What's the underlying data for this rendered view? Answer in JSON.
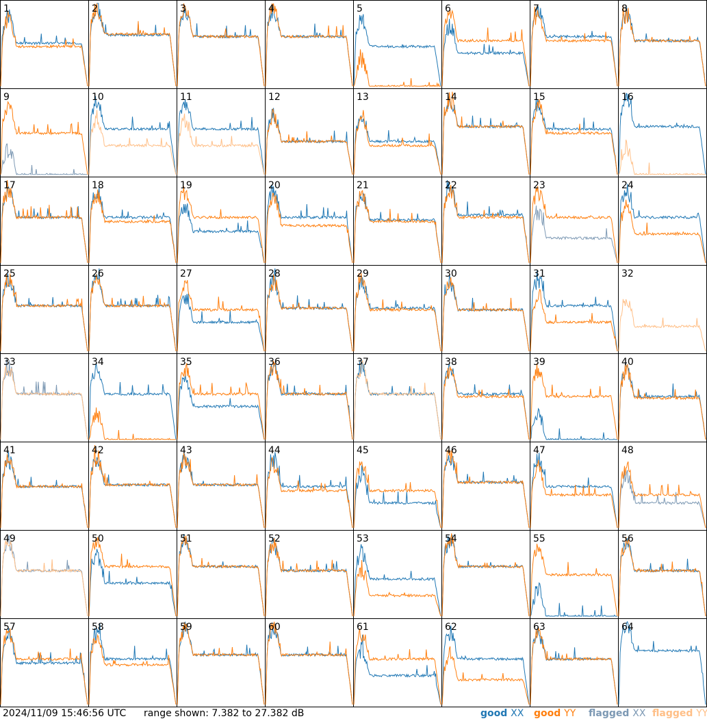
{
  "timestamp": "2024/11/09 15:46:56 UTC",
  "range_text": "range shown: 7.382 to 27.382 dB",
  "legend": [
    {
      "prefix": "good",
      "pol": "XX",
      "color": "#1f77b4"
    },
    {
      "prefix": "good",
      "pol": "YY",
      "color": "#ff7f0e"
    },
    {
      "prefix": "flagged",
      "pol": "XX",
      "color": "#7d99b4"
    },
    {
      "prefix": "flagged",
      "pol": "YY",
      "color": "#ffbf87"
    }
  ],
  "colors": {
    "good_xx": "#1f77b4",
    "good_yy": "#ff7f0e",
    "flagged_xx": "#7d99b4",
    "flagged_yy": "#ffbf87"
  },
  "chart_data": {
    "type": "line",
    "grid": "8x8 small multiples",
    "xlabel": "",
    "ylabel": "",
    "ylim": [
      7.382,
      27.382
    ],
    "units": "dB",
    "series_names": [
      "good XX",
      "good YY",
      "flagged XX",
      "flagged YY"
    ],
    "panels": [
      {
        "label": "1",
        "xx_status": "good",
        "yy_status": "good",
        "xx_level": 0.52,
        "yy_level": 0.48
      },
      {
        "label": "2",
        "xx_status": "good",
        "yy_status": "good",
        "xx_level": 0.62,
        "yy_level": 0.63
      },
      {
        "label": "3",
        "xx_status": "good",
        "yy_status": "good",
        "xx_level": 0.6,
        "yy_level": 0.6
      },
      {
        "label": "4",
        "xx_status": "good",
        "yy_status": "good",
        "xx_level": 0.6,
        "yy_level": 0.6
      },
      {
        "label": "5",
        "xx_status": "good",
        "yy_status": "good",
        "xx_level": 0.48,
        "yy_level": 0.0
      },
      {
        "label": "6",
        "xx_status": "good",
        "yy_status": "good",
        "xx_level": 0.4,
        "yy_level": 0.55
      },
      {
        "label": "7",
        "xx_status": "good",
        "yy_status": "good",
        "xx_level": 0.6,
        "yy_level": 0.55
      },
      {
        "label": "8",
        "xx_status": "good",
        "yy_status": "good",
        "xx_level": 0.55,
        "yy_level": 0.55
      },
      {
        "label": "9",
        "xx_status": "flagged",
        "yy_status": "good",
        "xx_level": 0.0,
        "yy_level": 0.5
      },
      {
        "label": "10",
        "xx_status": "good",
        "yy_status": "flagged",
        "xx_level": 0.55,
        "yy_level": 0.35
      },
      {
        "label": "11",
        "xx_status": "good",
        "yy_status": "flagged",
        "xx_level": 0.55,
        "yy_level": 0.35
      },
      {
        "label": "12",
        "xx_status": "good",
        "yy_status": "good",
        "xx_level": 0.4,
        "yy_level": 0.4
      },
      {
        "label": "13",
        "xx_status": "good",
        "yy_status": "good",
        "xx_level": 0.4,
        "yy_level": 0.35
      },
      {
        "label": "14",
        "xx_status": "good",
        "yy_status": "good",
        "xx_level": 0.58,
        "yy_level": 0.58
      },
      {
        "label": "15",
        "xx_status": "good",
        "yy_status": "good",
        "xx_level": 0.55,
        "yy_level": 0.5
      },
      {
        "label": "16",
        "xx_status": "good",
        "yy_status": "flagged",
        "xx_level": 0.58,
        "yy_level": 0.0
      },
      {
        "label": "17",
        "xx_status": "good",
        "yy_status": "good",
        "xx_level": 0.55,
        "yy_level": 0.55
      },
      {
        "label": "18",
        "xx_status": "good",
        "yy_status": "good",
        "xx_level": 0.55,
        "yy_level": 0.5
      },
      {
        "label": "19",
        "xx_status": "good",
        "yy_status": "good",
        "xx_level": 0.38,
        "yy_level": 0.55
      },
      {
        "label": "20",
        "xx_status": "good",
        "yy_status": "good",
        "xx_level": 0.55,
        "yy_level": 0.45
      },
      {
        "label": "21",
        "xx_status": "good",
        "yy_status": "good",
        "xx_level": 0.52,
        "yy_level": 0.5
      },
      {
        "label": "22",
        "xx_status": "good",
        "yy_status": "good",
        "xx_level": 0.58,
        "yy_level": 0.55
      },
      {
        "label": "23",
        "xx_status": "flagged",
        "yy_status": "good",
        "xx_level": 0.3,
        "yy_level": 0.55
      },
      {
        "label": "24",
        "xx_status": "good",
        "yy_status": "good",
        "xx_level": 0.55,
        "yy_level": 0.35
      },
      {
        "label": "25",
        "xx_status": "good",
        "yy_status": "good",
        "xx_level": 0.55,
        "yy_level": 0.55
      },
      {
        "label": "26",
        "xx_status": "good",
        "yy_status": "good",
        "xx_level": 0.55,
        "yy_level": 0.55
      },
      {
        "label": "27",
        "xx_status": "good",
        "yy_status": "good",
        "xx_level": 0.35,
        "yy_level": 0.5
      },
      {
        "label": "28",
        "xx_status": "good",
        "yy_status": "good",
        "xx_level": 0.52,
        "yy_level": 0.52
      },
      {
        "label": "29",
        "xx_status": "good",
        "yy_status": "good",
        "xx_level": 0.52,
        "yy_level": 0.5
      },
      {
        "label": "30",
        "xx_status": "good",
        "yy_status": "good",
        "xx_level": 0.5,
        "yy_level": 0.5
      },
      {
        "label": "31",
        "xx_status": "good",
        "yy_status": "good",
        "xx_level": 0.55,
        "yy_level": 0.35
      },
      {
        "label": "32",
        "xx_status": "none",
        "yy_status": "flagged",
        "xx_level": 0.0,
        "yy_level": 0.3
      },
      {
        "label": "33",
        "xx_status": "flagged",
        "yy_status": "flagged",
        "xx_level": 0.55,
        "yy_level": 0.55
      },
      {
        "label": "34",
        "xx_status": "good",
        "yy_status": "good",
        "xx_level": 0.55,
        "yy_level": 0.0
      },
      {
        "label": "35",
        "xx_status": "good",
        "yy_status": "good",
        "xx_level": 0.4,
        "yy_level": 0.55
      },
      {
        "label": "36",
        "xx_status": "good",
        "yy_status": "good",
        "xx_level": 0.55,
        "yy_level": 0.55
      },
      {
        "label": "37",
        "xx_status": "good",
        "yy_status": "flagged",
        "xx_level": 0.55,
        "yy_level": 0.55
      },
      {
        "label": "38",
        "xx_status": "good",
        "yy_status": "good",
        "xx_level": 0.55,
        "yy_level": 0.52
      },
      {
        "label": "39",
        "xx_status": "good",
        "yy_status": "good",
        "xx_level": 0.0,
        "yy_level": 0.52
      },
      {
        "label": "40",
        "xx_status": "good",
        "yy_status": "good",
        "xx_level": 0.52,
        "yy_level": 0.5
      },
      {
        "label": "41",
        "xx_status": "good",
        "yy_status": "good",
        "xx_level": 0.5,
        "yy_level": 0.5
      },
      {
        "label": "42",
        "xx_status": "good",
        "yy_status": "good",
        "xx_level": 0.52,
        "yy_level": 0.52
      },
      {
        "label": "43",
        "xx_status": "good",
        "yy_status": "good",
        "xx_level": 0.52,
        "yy_level": 0.52
      },
      {
        "label": "44",
        "xx_status": "good",
        "yy_status": "good",
        "xx_level": 0.5,
        "yy_level": 0.45
      },
      {
        "label": "45",
        "xx_status": "good",
        "yy_status": "good",
        "xx_level": 0.3,
        "yy_level": 0.45
      },
      {
        "label": "46",
        "xx_status": "good",
        "yy_status": "good",
        "xx_level": 0.55,
        "yy_level": 0.55
      },
      {
        "label": "47",
        "xx_status": "good",
        "yy_status": "good",
        "xx_level": 0.5,
        "yy_level": 0.4
      },
      {
        "label": "48",
        "xx_status": "flagged",
        "yy_status": "good",
        "xx_level": 0.3,
        "yy_level": 0.4
      },
      {
        "label": "49",
        "xx_status": "flagged",
        "yy_status": "flagged",
        "xx_level": 0.55,
        "yy_level": 0.55
      },
      {
        "label": "50",
        "xx_status": "good",
        "yy_status": "good",
        "xx_level": 0.4,
        "yy_level": 0.6
      },
      {
        "label": "51",
        "xx_status": "good",
        "yy_status": "good",
        "xx_level": 0.6,
        "yy_level": 0.6
      },
      {
        "label": "52",
        "xx_status": "good",
        "yy_status": "good",
        "xx_level": 0.55,
        "yy_level": 0.55
      },
      {
        "label": "53",
        "xx_status": "good",
        "yy_status": "good",
        "xx_level": 0.45,
        "yy_level": 0.25
      },
      {
        "label": "54",
        "xx_status": "good",
        "yy_status": "good",
        "xx_level": 0.6,
        "yy_level": 0.6
      },
      {
        "label": "55",
        "xx_status": "good",
        "yy_status": "good",
        "xx_level": 0.0,
        "yy_level": 0.5
      },
      {
        "label": "56",
        "xx_status": "good",
        "yy_status": "good",
        "xx_level": 0.55,
        "yy_level": 0.55
      },
      {
        "label": "57",
        "xx_status": "good",
        "yy_status": "good",
        "xx_level": 0.5,
        "yy_level": 0.55
      },
      {
        "label": "58",
        "xx_status": "good",
        "yy_status": "good",
        "xx_level": 0.55,
        "yy_level": 0.48
      },
      {
        "label": "59",
        "xx_status": "good",
        "yy_status": "good",
        "xx_level": 0.6,
        "yy_level": 0.6
      },
      {
        "label": "60",
        "xx_status": "good",
        "yy_status": "good",
        "xx_level": 0.6,
        "yy_level": 0.6
      },
      {
        "label": "61",
        "xx_status": "good",
        "yy_status": "good",
        "xx_level": 0.35,
        "yy_level": 0.55
      },
      {
        "label": "62",
        "xx_status": "good",
        "yy_status": "good",
        "xx_level": 0.55,
        "yy_level": 0.3
      },
      {
        "label": "63",
        "xx_status": "good",
        "yy_status": "good",
        "xx_level": 0.55,
        "yy_level": 0.55
      },
      {
        "label": "64",
        "xx_status": "good",
        "yy_status": "none",
        "xx_level": 0.65,
        "yy_level": 0.0
      }
    ]
  }
}
